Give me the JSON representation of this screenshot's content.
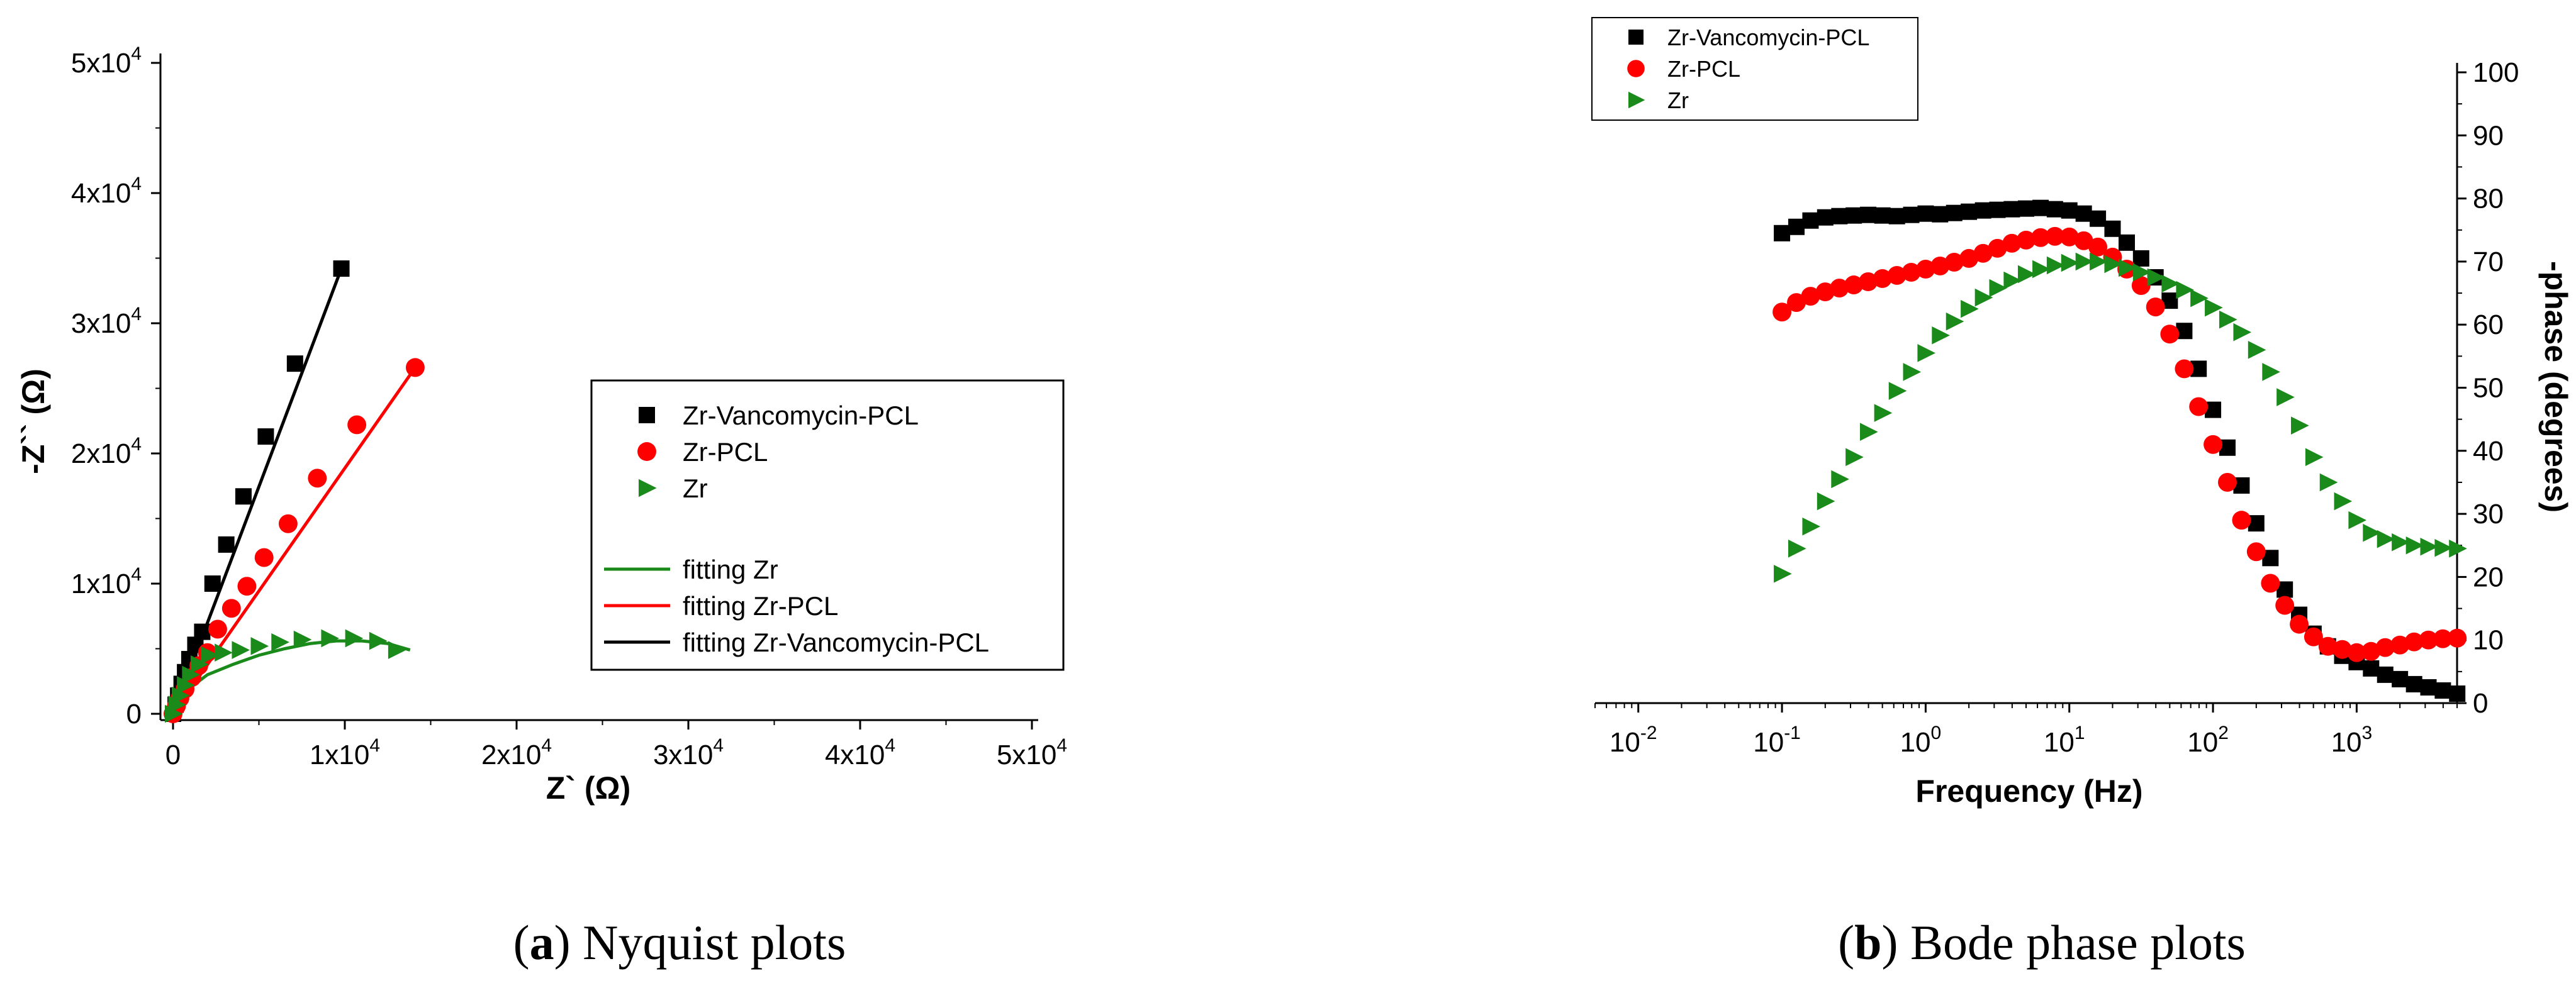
{
  "captions": {
    "a_letter": "a",
    "a_text": " Nyquist plots",
    "b_letter": "b",
    "b_text": " Bode phase plots"
  },
  "colors": {
    "vanco": "#000000",
    "pcl": "#ff0000",
    "zr": "#1a8a1a",
    "fit_zr": "#1a8a1a",
    "fit_pcl": "#ff0000",
    "fit_vanco": "#000000"
  },
  "chart_data": [
    {
      "type": "scatter",
      "panel": "a",
      "xlabel": "Z` (Ω)",
      "ylabel": "-Z`` (Ω)",
      "xlim": [
        0,
        50000
      ],
      "ylim": [
        0,
        50000
      ],
      "x_ticks": [
        {
          "v": 0,
          "m": "0",
          "e": ""
        },
        {
          "v": 10000,
          "m": "1x10",
          "e": "4"
        },
        {
          "v": 20000,
          "m": "2x10",
          "e": "4"
        },
        {
          "v": 30000,
          "m": "3x10",
          "e": "4"
        },
        {
          "v": 40000,
          "m": "4x10",
          "e": "4"
        },
        {
          "v": 50000,
          "m": "5x10",
          "e": "4"
        }
      ],
      "y_ticks": [
        {
          "v": 0,
          "m": "0",
          "e": ""
        },
        {
          "v": 10000,
          "m": "1x10",
          "e": "4"
        },
        {
          "v": 20000,
          "m": "2x10",
          "e": "4"
        },
        {
          "v": 30000,
          "m": "3x10",
          "e": "4"
        },
        {
          "v": 40000,
          "m": "4x10",
          "e": "4"
        },
        {
          "v": 50000,
          "m": "5x10",
          "e": "4"
        }
      ],
      "legend_position": "center-right",
      "series": [
        {
          "name": "Zr-Vancomycin-PCL",
          "marker": "square",
          "color": "#000000",
          "x": [
            0,
            150,
            300,
            500,
            700,
            950,
            1300,
            1700,
            2300,
            3100,
            4100,
            5400,
            7100,
            9800
          ],
          "y": [
            0,
            700,
            1400,
            2300,
            3200,
            4200,
            5300,
            6300,
            10000,
            13000,
            16700,
            21300,
            26900,
            34200
          ]
        },
        {
          "name": "Zr-PCL",
          "marker": "circle",
          "color": "#ff0000",
          "x": [
            0,
            200,
            400,
            700,
            1100,
            1500,
            2000,
            2600,
            3400,
            4300,
            5300,
            6700,
            8400,
            10700,
            14100
          ],
          "y": [
            0,
            600,
            1200,
            1900,
            2800,
            3700,
            4700,
            6500,
            8100,
            9800,
            12000,
            14600,
            18100,
            22200,
            26600
          ]
        },
        {
          "name": "Zr",
          "marker": "triangle-right",
          "color": "#1a8a1a",
          "x": [
            0,
            200,
            400,
            700,
            1000,
            1500,
            2100,
            2900,
            3900,
            5000,
            6200,
            7500,
            9100,
            10500,
            11900,
            13000
          ],
          "y": [
            0,
            700,
            1400,
            2200,
            3000,
            3800,
            4500,
            4700,
            4900,
            5200,
            5500,
            5700,
            5800,
            5800,
            5600,
            4900
          ]
        }
      ],
      "fit_lines": [
        {
          "name": "fitting Zr",
          "color": "#1a8a1a",
          "x": [
            0,
            800,
            2000,
            3500,
            5000,
            6500,
            8000,
            9500,
            11000,
            12500,
            13800
          ],
          "y": [
            0,
            1800,
            3000,
            3800,
            4500,
            5000,
            5400,
            5600,
            5600,
            5400,
            4900
          ]
        },
        {
          "name": "fitting Zr-PCL",
          "color": "#ff0000",
          "x": [
            0,
            14100
          ],
          "y": [
            0,
            26600
          ]
        },
        {
          "name": "fitting Zr-Vancomycin-PCL",
          "color": "#000000",
          "x": [
            0,
            9800
          ],
          "y": [
            0,
            34200
          ]
        }
      ]
    },
    {
      "type": "scatter",
      "panel": "b",
      "xlabel": "Frequency (Hz)",
      "ylabel": "-phase (degrees)",
      "xscale": "log",
      "xlim": [
        0.005,
        5000
      ],
      "ylim": [
        0,
        100
      ],
      "x_ticks": [
        {
          "v": 0.01,
          "m": "10",
          "e": "-2"
        },
        {
          "v": 0.1,
          "m": "10",
          "e": "-1"
        },
        {
          "v": 1,
          "m": "10",
          "e": "0"
        },
        {
          "v": 10,
          "m": "10",
          "e": "1"
        },
        {
          "v": 100,
          "m": "10",
          "e": "2"
        },
        {
          "v": 1000,
          "m": "10",
          "e": "3"
        }
      ],
      "y_ticks": [
        {
          "v": 0,
          "m": "0",
          "e": ""
        },
        {
          "v": 10,
          "m": "10",
          "e": ""
        },
        {
          "v": 20,
          "m": "20",
          "e": ""
        },
        {
          "v": 30,
          "m": "30",
          "e": ""
        },
        {
          "v": 40,
          "m": "40",
          "e": ""
        },
        {
          "v": 50,
          "m": "50",
          "e": ""
        },
        {
          "v": 60,
          "m": "60",
          "e": ""
        },
        {
          "v": 70,
          "m": "70",
          "e": ""
        },
        {
          "v": 80,
          "m": "80",
          "e": ""
        },
        {
          "v": 90,
          "m": "90",
          "e": ""
        },
        {
          "v": 100,
          "m": "100",
          "e": ""
        }
      ],
      "legend_position": "top-left",
      "series": [
        {
          "name": "Zr-Vancomycin-PCL",
          "marker": "square",
          "color": "#000000",
          "x": [
            0.1,
            0.126,
            0.158,
            0.2,
            0.251,
            0.316,
            0.398,
            0.5,
            0.631,
            0.794,
            1,
            1.26,
            1.58,
            2,
            2.51,
            3.16,
            3.98,
            5,
            6.31,
            7.94,
            10,
            12.6,
            15.8,
            20,
            25.1,
            31.6,
            39.8,
            50,
            63.1,
            79.4,
            100,
            126,
            158,
            200,
            251,
            316,
            398,
            501,
            631,
            794,
            1000,
            1260,
            1580,
            2000,
            2510,
            3160,
            3980,
            5010
          ],
          "y": [
            74.5,
            75.5,
            76.5,
            77,
            77.2,
            77.3,
            77.4,
            77.3,
            77.2,
            77.4,
            77.6,
            77.5,
            77.7,
            77.9,
            78.1,
            78.2,
            78.3,
            78.4,
            78.5,
            78.3,
            78.1,
            77.6,
            76.8,
            75.2,
            73,
            70.5,
            67.5,
            63.8,
            59,
            53,
            46.5,
            40.5,
            34.5,
            28.5,
            23,
            18,
            14,
            11,
            9,
            7.5,
            6.5,
            5.5,
            4.5,
            3.8,
            3,
            2.5,
            2,
            1.5
          ]
        },
        {
          "name": "Zr-PCL",
          "marker": "circle",
          "color": "#ff0000",
          "x": [
            0.1,
            0.126,
            0.158,
            0.2,
            0.251,
            0.316,
            0.398,
            0.5,
            0.631,
            0.794,
            1,
            1.26,
            1.58,
            2,
            2.51,
            3.16,
            3.98,
            5,
            6.31,
            7.94,
            10,
            12.6,
            15.8,
            20,
            25.1,
            31.6,
            39.8,
            50,
            63.1,
            79.4,
            100,
            126,
            158,
            200,
            251,
            316,
            398,
            501,
            631,
            794,
            1000,
            1260,
            1580,
            2000,
            2510,
            3160,
            3980,
            5010
          ],
          "y": [
            62,
            63.5,
            64.5,
            65.2,
            65.8,
            66.3,
            66.8,
            67.3,
            67.8,
            68.3,
            68.8,
            69.3,
            69.9,
            70.5,
            71.3,
            72.1,
            72.9,
            73.4,
            73.8,
            74,
            73.9,
            73.3,
            72.3,
            70.7,
            68.8,
            66.2,
            62.8,
            58.5,
            53,
            47,
            41,
            35,
            29,
            24,
            19,
            15.5,
            12.5,
            10.5,
            9,
            8.5,
            8,
            8.2,
            8.8,
            9.2,
            9.7,
            10,
            10.2,
            10.3
          ]
        },
        {
          "name": "Zr",
          "marker": "triangle-right",
          "color": "#1a8a1a",
          "x": [
            0.1,
            0.126,
            0.158,
            0.2,
            0.251,
            0.316,
            0.398,
            0.5,
            0.631,
            0.794,
            1,
            1.26,
            1.58,
            2,
            2.51,
            3.16,
            3.98,
            5,
            6.31,
            7.94,
            10,
            12.6,
            15.8,
            20,
            25.1,
            31.6,
            39.8,
            50,
            63.1,
            79.4,
            100,
            126,
            158,
            200,
            251,
            316,
            398,
            501,
            631,
            794,
            1000,
            1260,
            1580,
            2000,
            2510,
            3160,
            3980,
            5010
          ],
          "y": [
            20.5,
            24.5,
            28,
            32,
            35.5,
            39,
            43,
            46,
            49.5,
            52.5,
            55.5,
            58.3,
            60.5,
            62.5,
            64.3,
            65.8,
            67,
            68,
            68.8,
            69.4,
            69.8,
            70,
            70,
            69.6,
            69,
            68.3,
            67.5,
            66.5,
            65.5,
            64.2,
            62.7,
            60.8,
            58.8,
            56,
            52.5,
            48.5,
            44,
            39,
            35,
            32,
            29,
            27,
            26,
            25.5,
            25,
            24.8,
            24.6,
            24.5
          ]
        }
      ]
    }
  ]
}
